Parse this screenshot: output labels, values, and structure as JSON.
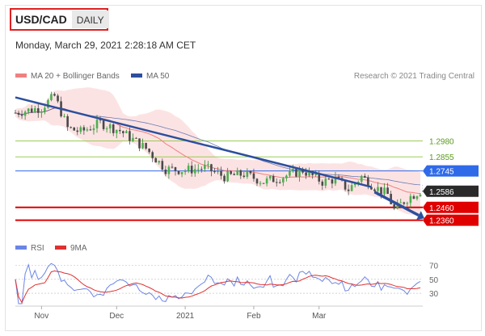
{
  "header": {
    "symbol": "USD/CAD",
    "period": "DAILY",
    "datetime": "Monday, March 29, 2021 2:28:18 AM CET"
  },
  "legend": {
    "ma20_label": "MA 20 + Bollinger Bands",
    "ma50_label": "MA 50",
    "credit": "Research © 2021 Trading Central"
  },
  "osc_legend": {
    "rsi_label": "RSI",
    "ma9_label": "9MA"
  },
  "colors": {
    "ma20": "#f08080",
    "ma50": "#2c4f9e",
    "trend": "#2c4f9e",
    "green": "#8cc63f",
    "blue_level": "#2f6ae8",
    "red": "#e00000",
    "price_tag": "#2a2a2a",
    "rsi": "#6b85e6",
    "rsi_ma": "#e03030",
    "band": "#fbdada"
  },
  "chart_data": [
    {
      "type": "candlestick",
      "title": "USD/CAD",
      "x_ticks": [
        "Nov",
        "Dec",
        "2021",
        "Feb",
        "Mar"
      ],
      "y_range": [
        1.225,
        1.345
      ],
      "levels": [
        {
          "label": "1.2980",
          "value": 1.298,
          "style": "green-thin"
        },
        {
          "label": "1.2855",
          "value": 1.2855,
          "style": "green-thin"
        },
        {
          "label": "1.2745",
          "value": 1.2745,
          "style": "blue-tag"
        },
        {
          "label": "1.2586",
          "value": 1.2586,
          "style": "current-price"
        },
        {
          "label": "1.2460",
          "value": 1.246,
          "style": "red-tag"
        },
        {
          "label": "1.2360",
          "value": 1.236,
          "style": "red-tag"
        }
      ],
      "trendline": {
        "from_bar": 0,
        "from": 1.332,
        "to_bar": 109,
        "to": 1.262
      },
      "forecast_arrow": {
        "from_bar": 109,
        "from": 1.258,
        "to_bar": 124,
        "to": 1.236
      },
      "series": [
        {
          "name": "MA 20 + Bollinger Bands",
          "role": "ma20"
        },
        {
          "name": "MA 50",
          "role": "ma50"
        }
      ]
    },
    {
      "type": "line",
      "x_ticks": [
        "Nov",
        "Dec",
        "2021",
        "Feb",
        "Mar"
      ],
      "y_range": [
        15,
        80
      ],
      "y_ticks": [
        "70",
        "50",
        "30"
      ],
      "series": [
        {
          "name": "RSI"
        },
        {
          "name": "9MA"
        }
      ]
    }
  ]
}
